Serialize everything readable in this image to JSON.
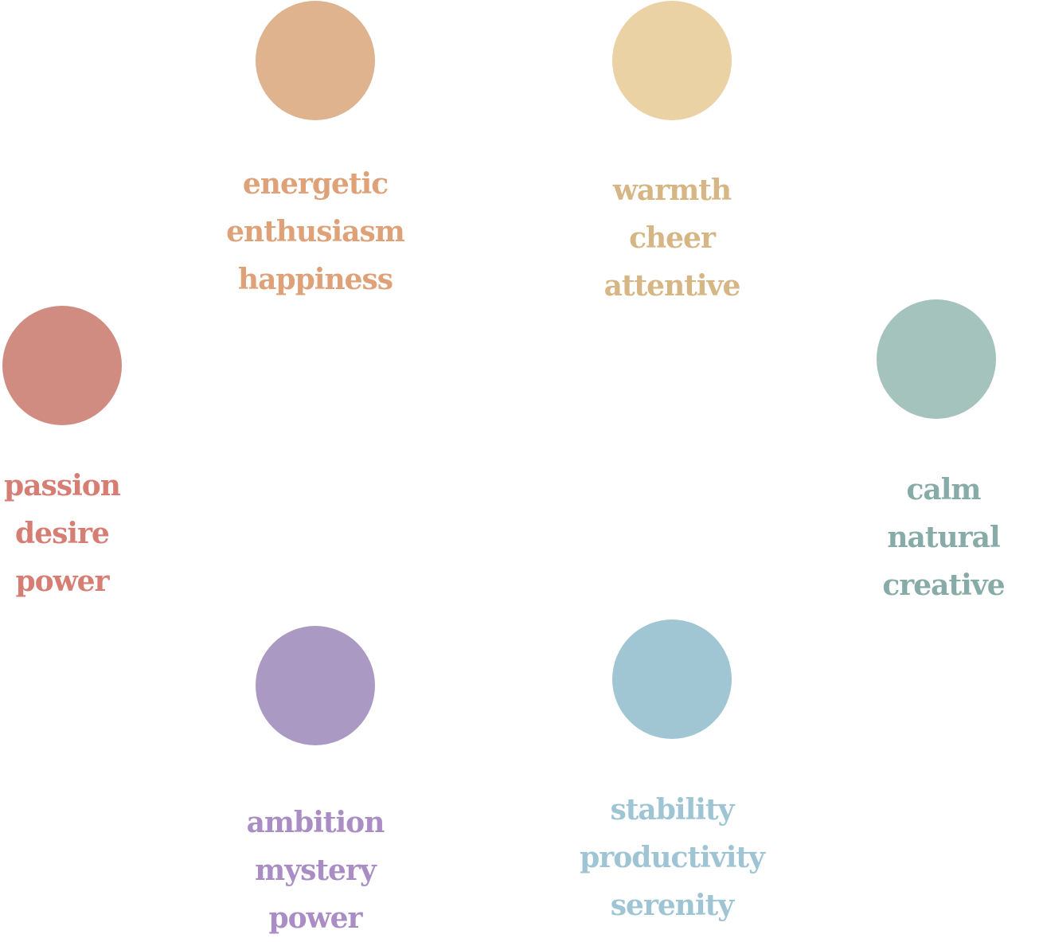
{
  "groups": [
    {
      "id": "orange",
      "color": "#DFB38E",
      "text_color": "#DFA178",
      "words": [
        "energetic",
        "enthusiasm",
        "happiness"
      ]
    },
    {
      "id": "yellow",
      "color": "#EAD2A4",
      "text_color": "#D6B684",
      "words": [
        "warmth",
        "cheer",
        "attentive"
      ]
    },
    {
      "id": "red",
      "color": "#D18C82",
      "text_color": "#D67E74",
      "words": [
        "passion",
        "desire",
        "power"
      ]
    },
    {
      "id": "green",
      "color": "#A3C3BC",
      "text_color": "#87ABA7",
      "words": [
        "calm",
        "natural",
        "creative"
      ]
    },
    {
      "id": "purple",
      "color": "#AA9AC3",
      "text_color": "#A98DC4",
      "words": [
        "ambition",
        "mystery",
        "power"
      ]
    },
    {
      "id": "blue",
      "color": "#A0C6D3",
      "text_color": "#9FC5D4",
      "words": [
        "stability",
        "productivity",
        "serenity"
      ]
    }
  ]
}
